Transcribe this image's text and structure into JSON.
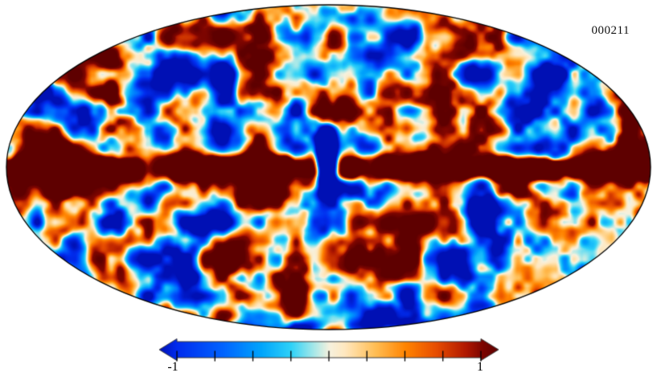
{
  "chart_data": {
    "type": "heatmap",
    "projection": "mollweide",
    "description": "Full-sky Mollweide-projection map of a CMB-like fluctuation field. Turbulent blobs of saturated blue/cyan (negative) and orange/dark-red (positive) separated by thin cream boundaries. A saturated dark-red band (galactic plane) runs along the equator across the full width, with a narrow blue notch just right of the map center and a broad dark-red lobe above the band right of center.",
    "annotation_top_right": "000211",
    "value_range": [
      -1,
      1
    ],
    "colorbar": {
      "orientation": "horizontal",
      "extend": "both",
      "label_min": "-1",
      "label_max": "1",
      "ticks": [
        -1,
        -0.75,
        -0.5,
        -0.25,
        0,
        0.25,
        0.5,
        0.75,
        1
      ]
    },
    "colormap": {
      "name": "planck-blue-white-red",
      "stops": [
        {
          "v": -1.35,
          "color": "#0010b4"
        },
        {
          "v": -1.0,
          "color": "#002cee"
        },
        {
          "v": -0.7,
          "color": "#0064ff"
        },
        {
          "v": -0.45,
          "color": "#00a4fb"
        },
        {
          "v": -0.25,
          "color": "#2fd2f8"
        },
        {
          "v": -0.1,
          "color": "#a8e8e8"
        },
        {
          "v": 0.0,
          "color": "#f6f1de"
        },
        {
          "v": 0.1,
          "color": "#ffe8c0"
        },
        {
          "v": 0.3,
          "color": "#ffbe55"
        },
        {
          "v": 0.5,
          "color": "#ff8400"
        },
        {
          "v": 0.7,
          "color": "#e84e00"
        },
        {
          "v": 0.9,
          "color": "#b01800"
        },
        {
          "v": 1.0,
          "color": "#800600"
        },
        {
          "v": 1.35,
          "color": "#5e0000"
        }
      ]
    },
    "frame_color": "#000000",
    "background": "#ffffff"
  }
}
